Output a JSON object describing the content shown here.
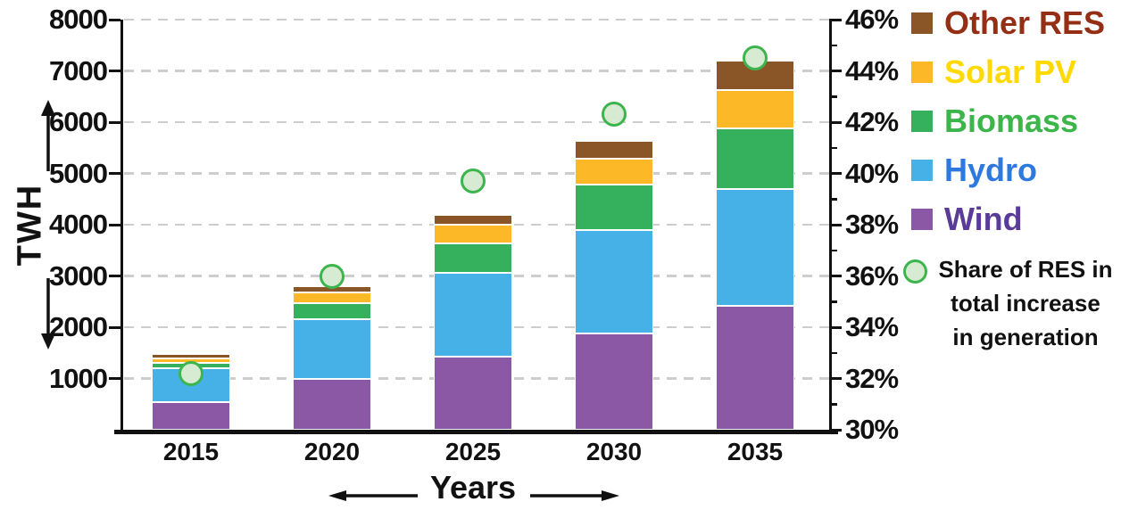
{
  "chart_data": {
    "type": "bar",
    "subtype": "stacked-bars-with-percent-markers",
    "categories": [
      "2015",
      "2020",
      "2025",
      "2030",
      "2035"
    ],
    "series": [
      {
        "name": "Wind",
        "color": "#8a58a5",
        "values": [
          540,
          1000,
          1425,
          1880,
          2410
        ]
      },
      {
        "name": "Hydro",
        "color": "#45b1e7",
        "values": [
          655,
          1150,
          1635,
          2010,
          2290
        ]
      },
      {
        "name": "Biomass",
        "color": "#35b05c",
        "values": [
          115,
          315,
          570,
          885,
          1180
        ]
      },
      {
        "name": "Solar PV",
        "color": "#fdb827",
        "values": [
          75,
          215,
          370,
          520,
          740
        ]
      },
      {
        "name": "Other RES",
        "color": "#8a5527",
        "values": [
          100,
          120,
          200,
          345,
          580
        ]
      }
    ],
    "totals_twh": [
      1485,
      2800,
      4200,
      5640,
      7200
    ],
    "point_series": {
      "name": "Share of RES in total increase in generation",
      "values_percent": [
        32.2,
        36.0,
        39.7,
        42.3,
        44.5
      ],
      "marker_fill": "#d7ead2",
      "marker_stroke": "#3cb54d"
    },
    "left_axis": {
      "label": "TWH",
      "min": 0,
      "max": 8000,
      "tick_step": 1000,
      "tick_labels": [
        "1000",
        "2000",
        "3000",
        "4000",
        "5000",
        "6000",
        "7000",
        "8000"
      ]
    },
    "right_axis": {
      "min": 30,
      "max": 46,
      "major_step": 2,
      "minor_step": 1,
      "tick_labels": [
        "30%",
        "32%",
        "34%",
        "36%",
        "38%",
        "40%",
        "42%",
        "44%",
        "46%"
      ]
    },
    "x_axis": {
      "label": "Years"
    },
    "grid": {
      "horizontal_dashed": true,
      "color": "#cdcdcd"
    }
  },
  "legend": {
    "items": [
      {
        "label": "Other RES",
        "swatch": "#8a5527",
        "text_color": "#942e14"
      },
      {
        "label": "Solar PV",
        "swatch": "#fdb827",
        "text_color": "#ffd900"
      },
      {
        "label": "Biomass",
        "swatch": "#35b05c",
        "text_color": "#3cb54a"
      },
      {
        "label": "Hydro",
        "swatch": "#45b1e7",
        "text_color": "#2d79e0"
      },
      {
        "label": "Wind",
        "swatch": "#8a58a5",
        "text_color": "#5a3b97"
      }
    ],
    "share_item": {
      "label_lines": [
        "Share of RES in",
        "total increase",
        "in generation"
      ],
      "text_color": "#111111"
    }
  }
}
